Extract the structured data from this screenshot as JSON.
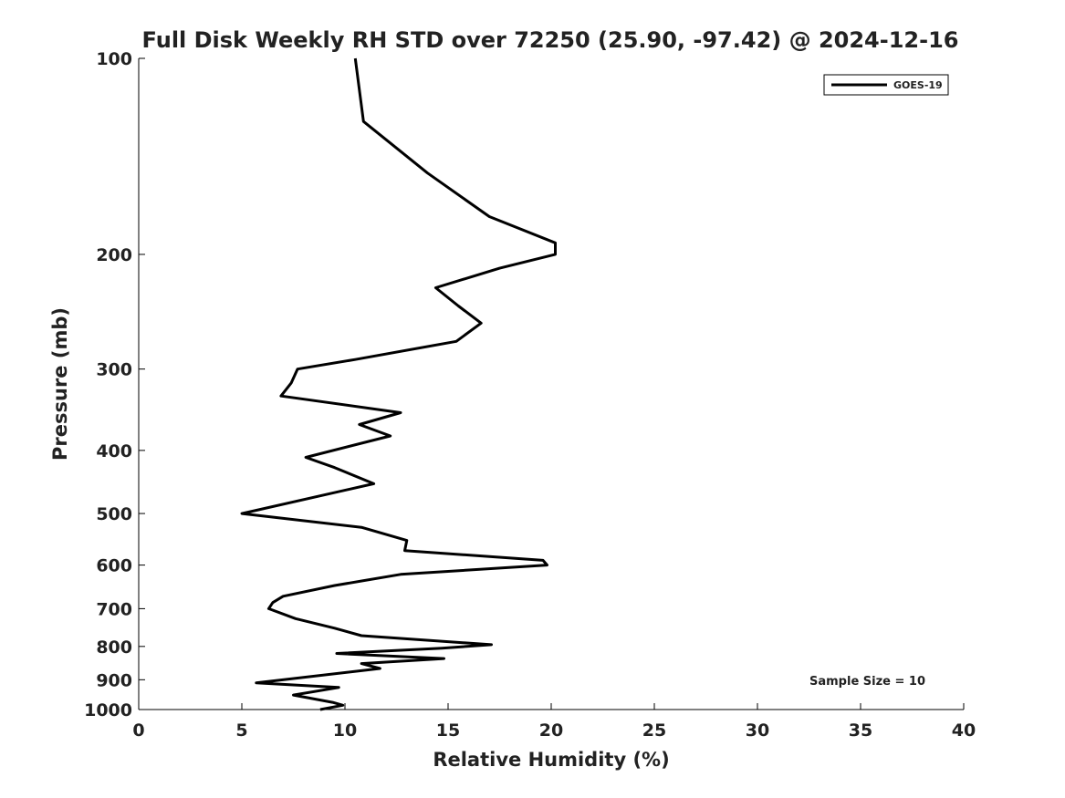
{
  "chart_data": {
    "type": "line",
    "title": "Full Disk Weekly RH STD over 72250 (25.90, -97.42) @ 2024-12-16",
    "xlabel": "Relative Humidity (%)",
    "ylabel": "Pressure (mb)",
    "xlim": [
      0,
      40
    ],
    "ylim": [
      100,
      1000
    ],
    "yscale": "log",
    "y_inverted": true,
    "grid": false,
    "x_ticks": [
      "0",
      "5",
      "10",
      "15",
      "20",
      "25",
      "30",
      "35",
      "40"
    ],
    "y_ticks": [
      "100",
      "200",
      "300",
      "400",
      "500",
      "600",
      "700",
      "800",
      "900",
      "1000"
    ],
    "legend": {
      "position": "top-right"
    },
    "annotation": "Sample Size = 10",
    "series": [
      {
        "name": "GOES-19",
        "color": "#000000",
        "points": [
          [
            10.5,
            100
          ],
          [
            10.9,
            125
          ],
          [
            14.0,
            150
          ],
          [
            17.0,
            175
          ],
          [
            20.2,
            192
          ],
          [
            20.2,
            200
          ],
          [
            17.5,
            210
          ],
          [
            14.4,
            225
          ],
          [
            15.5,
            240
          ],
          [
            16.6,
            255
          ],
          [
            15.4,
            272
          ],
          [
            10.5,
            290
          ],
          [
            7.7,
            300
          ],
          [
            7.4,
            315
          ],
          [
            6.9,
            330
          ],
          [
            12.7,
            350
          ],
          [
            10.7,
            365
          ],
          [
            12.2,
            380
          ],
          [
            8.1,
            410
          ],
          [
            9.5,
            425
          ],
          [
            11.4,
            450
          ],
          [
            5.0,
            500
          ],
          [
            10.8,
            525
          ],
          [
            13.0,
            550
          ],
          [
            12.9,
            570
          ],
          [
            19.6,
            590
          ],
          [
            19.8,
            600
          ],
          [
            12.7,
            620
          ],
          [
            9.5,
            645
          ],
          [
            7.0,
            670
          ],
          [
            6.5,
            685
          ],
          [
            6.3,
            700
          ],
          [
            7.6,
            725
          ],
          [
            9.5,
            750
          ],
          [
            10.8,
            770
          ],
          [
            17.1,
            795
          ],
          [
            14.7,
            805
          ],
          [
            9.6,
            820
          ],
          [
            14.8,
            835
          ],
          [
            10.8,
            850
          ],
          [
            11.7,
            865
          ],
          [
            5.7,
            910
          ],
          [
            9.7,
            925
          ],
          [
            7.5,
            950
          ],
          [
            9.4,
            975
          ],
          [
            9.9,
            985
          ],
          [
            8.8,
            1000
          ]
        ]
      }
    ]
  }
}
